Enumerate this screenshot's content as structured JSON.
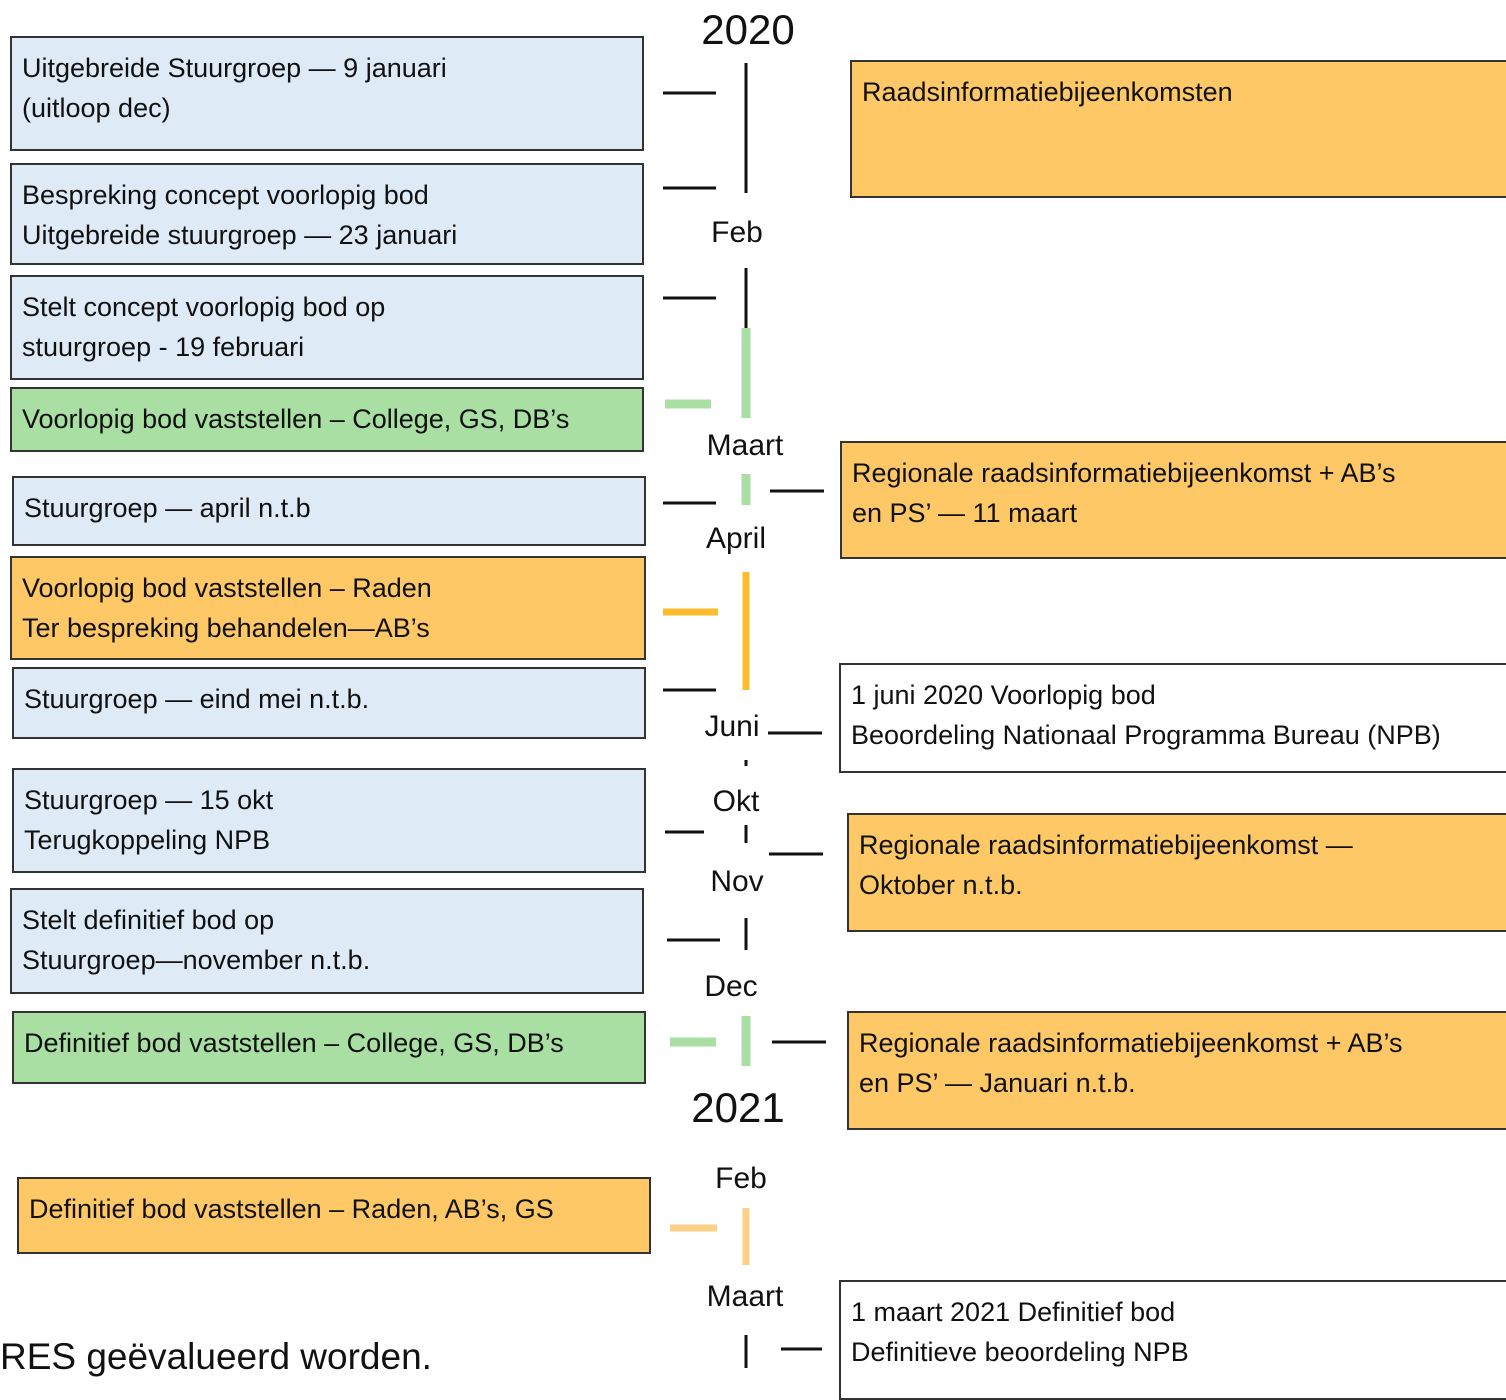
{
  "left_boxes": [
    {
      "lines": [
        "Uitgebreide Stuurgroep — 9 januari",
        "(uitloop dec)"
      ]
    },
    {
      "lines": [
        "Bespreking concept voorlopig bod",
        "Uitgebreide stuurgroep — 23 januari"
      ]
    },
    {
      "lines": [
        "Stelt concept voorlopig bod op",
        "stuurgroep  - 19 februari"
      ]
    },
    {
      "lines": [
        "Voorlopig bod vaststellen – College, GS, DB’s"
      ]
    },
    {
      "lines": [
        "Stuurgroep — april n.t.b"
      ]
    },
    {
      "lines": [
        "Voorlopig bod vaststellen – Raden",
        "Ter bespreking behandelen—AB’s"
      ]
    },
    {
      "lines": [
        "Stuurgroep — eind mei n.t.b."
      ]
    },
    {
      "lines": [
        "Stuurgroep — 15 okt",
        "Terugkoppeling NPB"
      ]
    },
    {
      "lines": [
        "Stelt definitief bod op",
        "Stuurgroep—november n.t.b."
      ]
    },
    {
      "lines": [
        "Definitief bod vaststellen – College, GS, DB’s"
      ]
    },
    {
      "lines": [
        "Definitief bod vaststellen – Raden, AB’s, GS"
      ]
    }
  ],
  "right_boxes": [
    {
      "lines": [
        "Raadsinformatiebijeenkomsten"
      ]
    },
    {
      "lines": [
        "Regionale raadsinformatiebijeenkomst  + AB’s",
        "en PS’ — 11 maart"
      ]
    },
    {
      "lines": [
        "1 juni 2020 Voorlopig bod",
        "Beoordeling Nationaal Programma Bureau (NPB)"
      ]
    },
    {
      "lines": [
        "Regionale raadsinformatiebijeenkomst  —",
        "Oktober n.t.b."
      ]
    },
    {
      "lines": [
        "Regionale raadsinformatiebijeenkomst + AB’s",
        "en PS’ — Januari n.t.b."
      ]
    },
    {
      "lines": [
        "1 maart 2021 Definitief bod",
        "Definitieve beoordeling NPB"
      ]
    }
  ],
  "timeline": [
    "2020",
    "Feb",
    "Maart",
    "April",
    "Juni",
    "Okt",
    "Nov",
    "Dec",
    "2021",
    "Feb",
    "Maart"
  ],
  "footer": "RES geëvalueerd worden."
}
